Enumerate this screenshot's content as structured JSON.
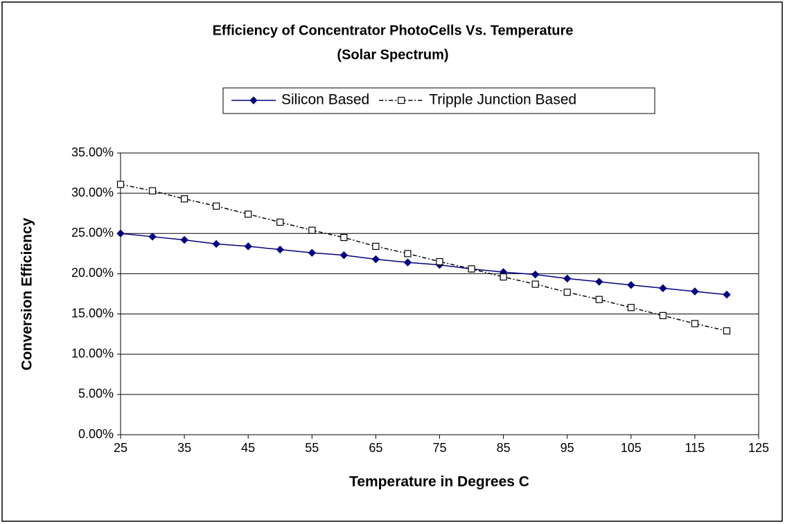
{
  "chart_data": {
    "type": "line",
    "title": "Efficiency of Concentrator PhotoCells Vs. Temperature",
    "subtitle": "(Solar Spectrum)",
    "x_label": "Temperature in Degrees C",
    "y_label": "Conversion Efficiency",
    "x": [
      25,
      30,
      35,
      40,
      45,
      50,
      55,
      60,
      65,
      70,
      75,
      80,
      85,
      90,
      95,
      100,
      105,
      110,
      115,
      120
    ],
    "series": [
      {
        "name": "Silicon Based",
        "color": "#000080",
        "marker": "diamond",
        "dash": "solid",
        "values": [
          25.0,
          24.6,
          24.2,
          23.7,
          23.4,
          23.0,
          22.6,
          22.3,
          21.8,
          21.4,
          21.1,
          20.6,
          20.2,
          19.9,
          19.4,
          19.0,
          18.6,
          18.2,
          17.8,
          17.4
        ]
      },
      {
        "name": "Tripple Junction Based",
        "color": "#000000",
        "marker": "square",
        "dash": "dashdot",
        "values": [
          31.1,
          30.3,
          29.3,
          28.4,
          27.4,
          26.4,
          25.4,
          24.5,
          23.4,
          22.5,
          21.5,
          20.6,
          19.6,
          18.7,
          17.7,
          16.8,
          15.8,
          14.8,
          13.8,
          12.9
        ]
      }
    ],
    "xlim": [
      25,
      125
    ],
    "xticks": [
      25,
      35,
      45,
      55,
      65,
      75,
      85,
      95,
      105,
      115,
      125
    ],
    "ylim": [
      0,
      35
    ],
    "yticks": [
      {
        "value": 0,
        "label": "0.00%"
      },
      {
        "value": 5,
        "label": "5.00%"
      },
      {
        "value": 10,
        "label": "10.00%"
      },
      {
        "value": 15,
        "label": "15.00%"
      },
      {
        "value": 20,
        "label": "20.00%"
      },
      {
        "value": 25,
        "label": "25.00%"
      },
      {
        "value": 30,
        "label": "30.00%"
      },
      {
        "value": 35,
        "label": "35.00%"
      }
    ],
    "grid": true,
    "legend": "top"
  }
}
